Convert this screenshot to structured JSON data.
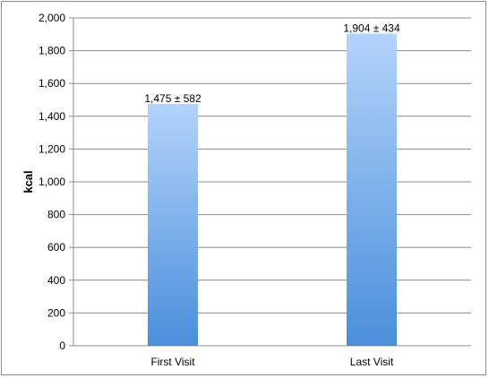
{
  "chart_data": {
    "type": "bar",
    "categories": [
      "First Visit",
      "Last Visit"
    ],
    "values": [
      1475,
      1904
    ],
    "data_labels": [
      "1,475 ± 582",
      "1,904 ± 434"
    ],
    "xlabel": "",
    "ylabel": "kcal",
    "ylim": [
      0,
      2000
    ],
    "yticks": [
      0,
      200,
      400,
      600,
      800,
      1000,
      1200,
      1400,
      1600,
      1800,
      2000
    ],
    "ytick_labels": [
      "0",
      "200",
      "400",
      "600",
      "800",
      "1,000",
      "1,200",
      "1,400",
      "1,600",
      "1,800",
      "2,000"
    ],
    "grid": true,
    "legend": "none",
    "colors": {
      "bar_top": "#b3d3fb",
      "bar_bottom": "#4a8fdb",
      "grid": "#8c8c8c",
      "axis": "#8c8c8c"
    }
  }
}
